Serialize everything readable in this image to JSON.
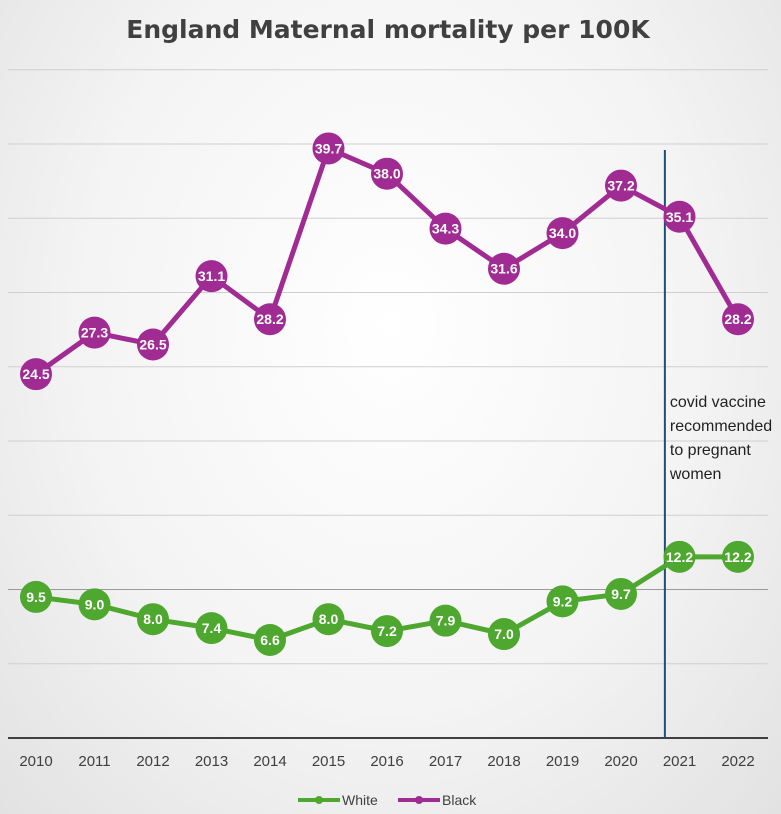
{
  "chart_data": {
    "type": "line",
    "title": "England Maternal mortality per 100K",
    "xlabel": "",
    "ylabel": "",
    "x": [
      "2010",
      "2011",
      "2012",
      "2013",
      "2014",
      "2015",
      "2016",
      "2017",
      "2018",
      "2019",
      "2020",
      "2021",
      "2022"
    ],
    "ylim": [
      0,
      45
    ],
    "grid": true,
    "legend": "bottom",
    "series": [
      {
        "name": "White",
        "color": "#4ea72e",
        "values": [
          9.5,
          9.0,
          8.0,
          7.4,
          6.6,
          8.0,
          7.2,
          7.9,
          7.0,
          9.2,
          9.7,
          12.2,
          12.2
        ],
        "labels": [
          "9.5",
          "9.0",
          "8.0",
          "7.4",
          "6.6",
          "8.0",
          "7.2",
          "7.9",
          "7.0",
          "9.2",
          "9.7",
          "12.2",
          "12.2"
        ]
      },
      {
        "name": "Black",
        "color": "#a02b93",
        "values": [
          24.5,
          27.3,
          26.5,
          31.1,
          28.2,
          39.7,
          38.0,
          34.3,
          31.6,
          34.0,
          37.2,
          35.1,
          28.2
        ],
        "labels": [
          "24.5",
          "27.3",
          "26.5",
          "31.1",
          "28.2",
          "39.7",
          "38.0",
          "34.3",
          "31.6",
          "34.0",
          "37.2",
          "35.1",
          "28.2"
        ]
      }
    ],
    "annotation": {
      "x": 2020.75,
      "color": "#1f4e79",
      "lines": [
        "covid vaccine",
        "recommended",
        "to pregnant",
        "women"
      ]
    }
  }
}
